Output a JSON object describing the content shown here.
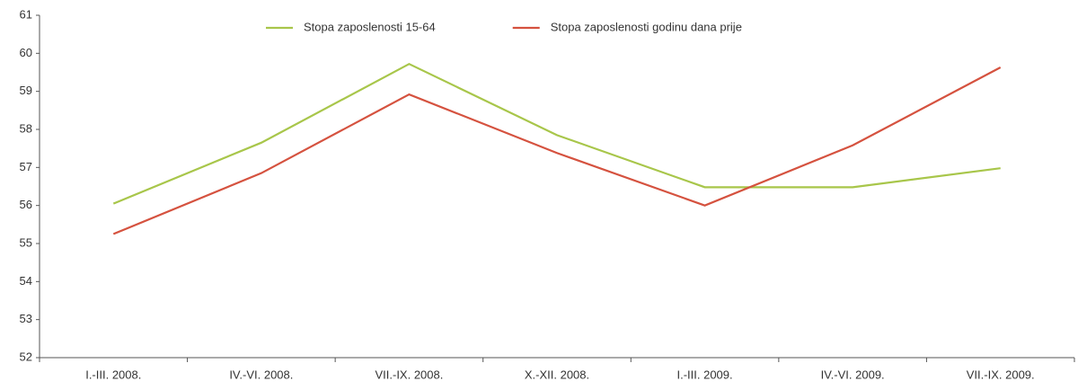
{
  "chart_data": {
    "type": "line",
    "categories": [
      "I.-III. 2008.",
      "IV.-VI. 2008.",
      "VII.-IX. 2008.",
      "X.-XII. 2008.",
      "I.-III. 2009.",
      "IV.-VI. 2009.",
      "VII.-IX. 2009."
    ],
    "series": [
      {
        "name": "Stopa zaposlenosti 15-64",
        "color": "#a8c64a",
        "values": [
          56.05,
          57.65,
          59.72,
          57.85,
          56.48,
          56.48,
          56.98
        ]
      },
      {
        "name": "Stopa zaposlenosti godinu dana prije",
        "color": "#d5523f",
        "values": [
          55.25,
          56.85,
          58.92,
          57.38,
          56.0,
          57.58,
          59.63
        ]
      }
    ],
    "ylim": [
      52,
      61
    ],
    "yticks": [
      52,
      53,
      54,
      55,
      56,
      57,
      58,
      59,
      60,
      61
    ],
    "grid": false
  }
}
